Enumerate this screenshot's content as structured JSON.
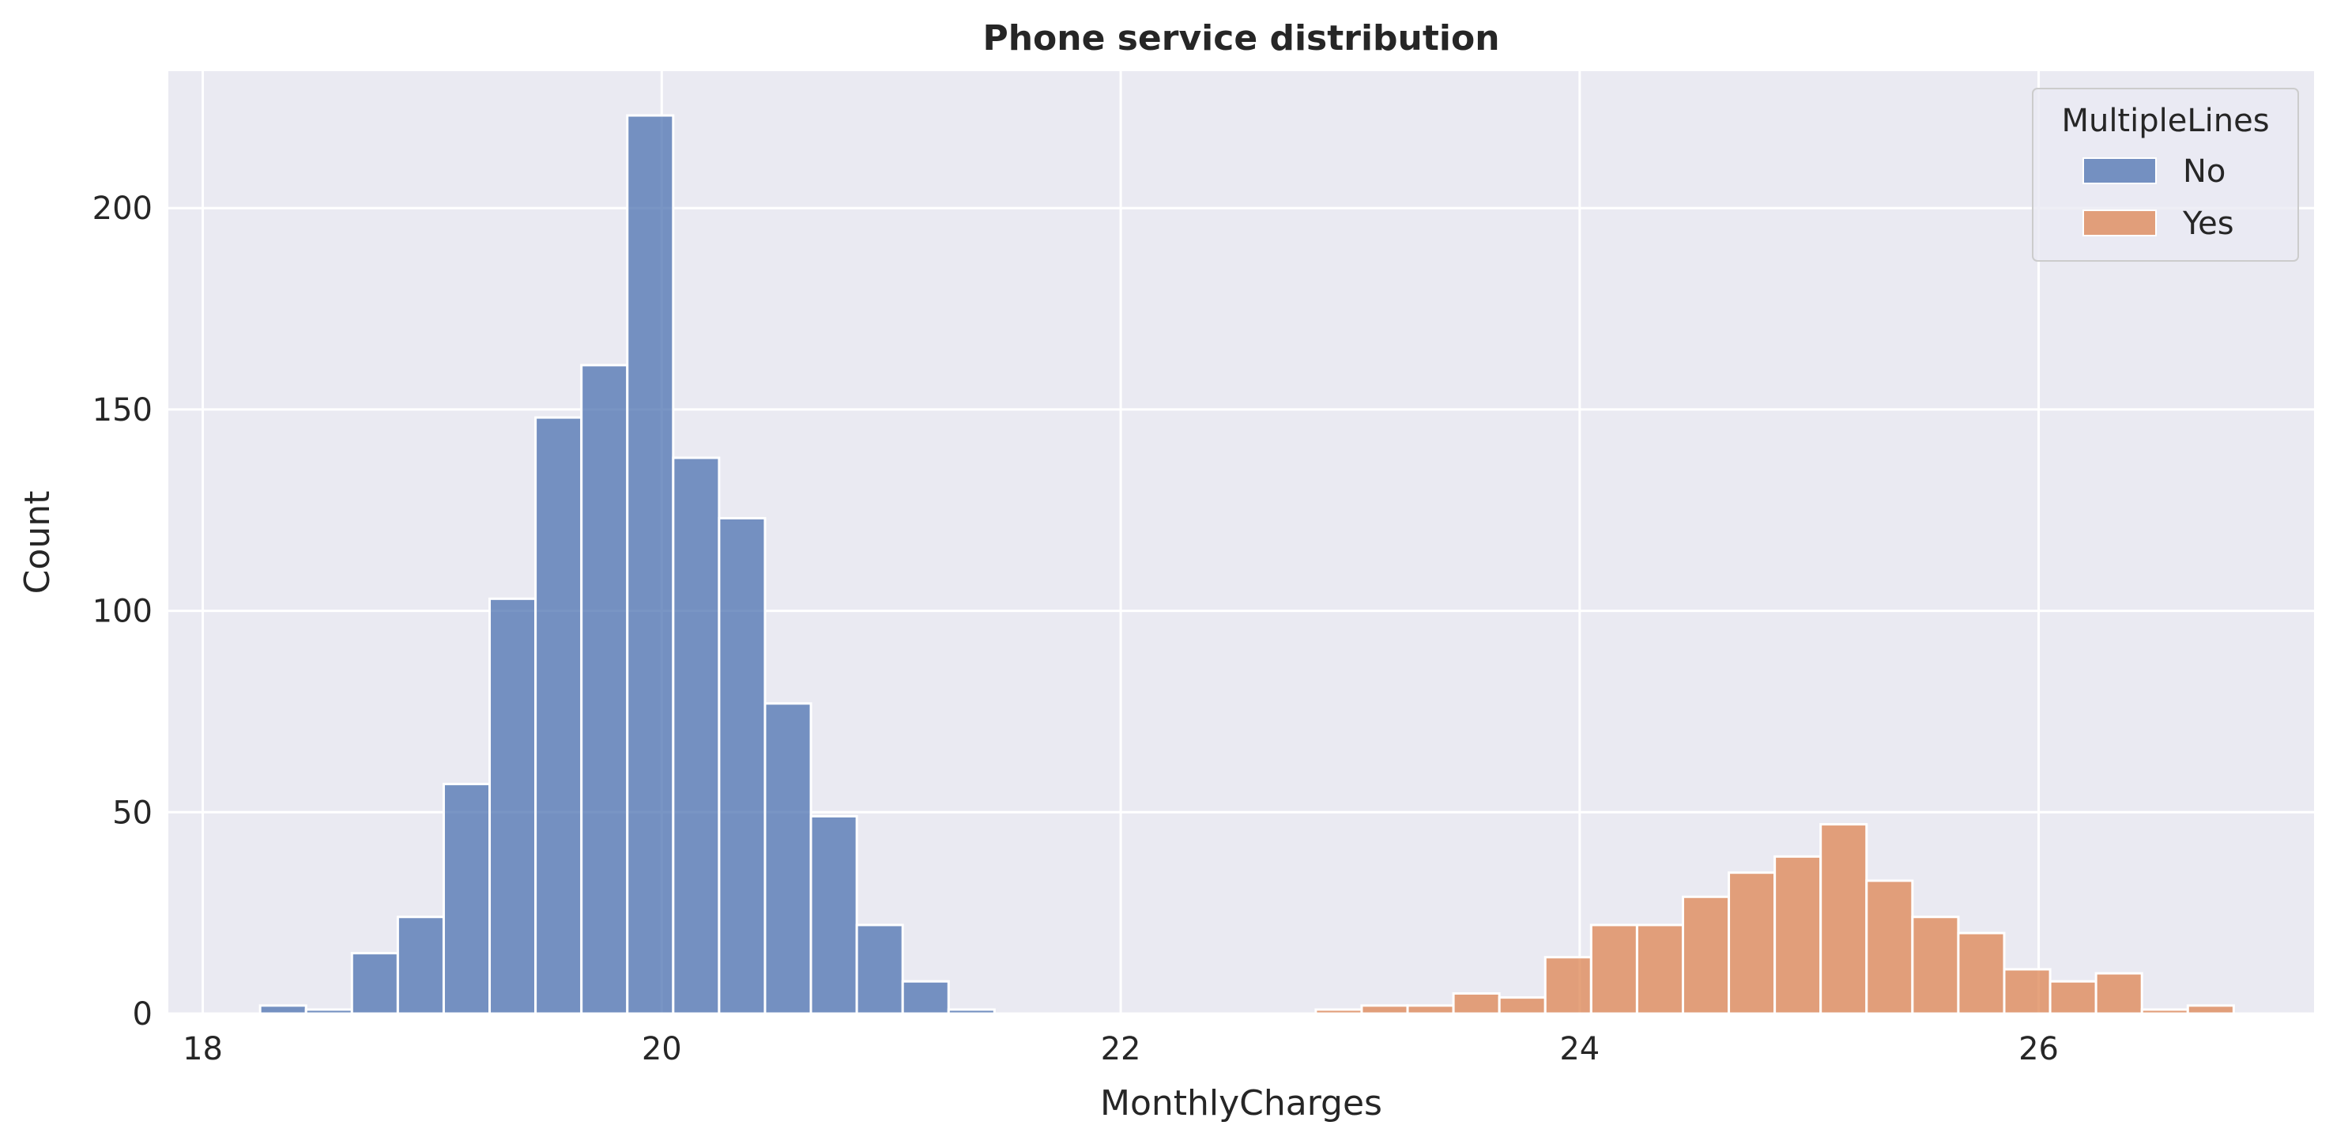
{
  "chart_data": {
    "type": "bar",
    "subtype": "histogram",
    "title": "Phone service distribution",
    "xlabel": "MonthlyCharges",
    "ylabel": "Count",
    "xlim": [
      17.85,
      27.2
    ],
    "ylim": [
      0,
      234
    ],
    "xticks": [
      18,
      20,
      22,
      24,
      26
    ],
    "yticks": [
      0,
      50,
      100,
      150,
      200
    ],
    "grid": true,
    "bin_width": 0.2,
    "legend": {
      "title": "MultipleLines",
      "placement": "top-right",
      "entries": [
        {
          "label": "No",
          "color": "#4C72B0"
        },
        {
          "label": "Yes",
          "color": "#DD8452"
        }
      ]
    },
    "background_color": "#EAEAF2",
    "series": [
      {
        "name": "No",
        "color": "#4C72B0",
        "bins": [
          {
            "x0": 18.25,
            "x1": 18.45,
            "count": 2
          },
          {
            "x0": 18.45,
            "x1": 18.65,
            "count": 1
          },
          {
            "x0": 18.65,
            "x1": 18.85,
            "count": 15
          },
          {
            "x0": 18.85,
            "x1": 19.05,
            "count": 24
          },
          {
            "x0": 19.05,
            "x1": 19.25,
            "count": 57
          },
          {
            "x0": 19.25,
            "x1": 19.45,
            "count": 103
          },
          {
            "x0": 19.45,
            "x1": 19.65,
            "count": 148
          },
          {
            "x0": 19.65,
            "x1": 19.85,
            "count": 161
          },
          {
            "x0": 19.85,
            "x1": 20.05,
            "count": 223
          },
          {
            "x0": 20.05,
            "x1": 20.25,
            "count": 138
          },
          {
            "x0": 20.25,
            "x1": 20.45,
            "count": 123
          },
          {
            "x0": 20.45,
            "x1": 20.65,
            "count": 77
          },
          {
            "x0": 20.65,
            "x1": 20.85,
            "count": 49
          },
          {
            "x0": 20.85,
            "x1": 21.05,
            "count": 22
          },
          {
            "x0": 21.05,
            "x1": 21.25,
            "count": 8
          },
          {
            "x0": 21.25,
            "x1": 21.45,
            "count": 1
          }
        ]
      },
      {
        "name": "Yes",
        "color": "#DD8452",
        "bins": [
          {
            "x0": 22.85,
            "x1": 23.05,
            "count": 1
          },
          {
            "x0": 23.05,
            "x1": 23.25,
            "count": 2
          },
          {
            "x0": 23.25,
            "x1": 23.45,
            "count": 2
          },
          {
            "x0": 23.45,
            "x1": 23.65,
            "count": 5
          },
          {
            "x0": 23.65,
            "x1": 23.85,
            "count": 4
          },
          {
            "x0": 23.85,
            "x1": 24.05,
            "count": 14
          },
          {
            "x0": 24.05,
            "x1": 24.25,
            "count": 22
          },
          {
            "x0": 24.25,
            "x1": 24.45,
            "count": 22
          },
          {
            "x0": 24.45,
            "x1": 24.65,
            "count": 29
          },
          {
            "x0": 24.65,
            "x1": 24.85,
            "count": 35
          },
          {
            "x0": 24.85,
            "x1": 25.05,
            "count": 39
          },
          {
            "x0": 25.05,
            "x1": 25.25,
            "count": 47
          },
          {
            "x0": 25.25,
            "x1": 25.45,
            "count": 33
          },
          {
            "x0": 25.45,
            "x1": 25.65,
            "count": 24
          },
          {
            "x0": 25.65,
            "x1": 25.85,
            "count": 20
          },
          {
            "x0": 25.85,
            "x1": 26.05,
            "count": 11
          },
          {
            "x0": 26.05,
            "x1": 26.25,
            "count": 8
          },
          {
            "x0": 26.25,
            "x1": 26.45,
            "count": 10
          },
          {
            "x0": 26.45,
            "x1": 26.65,
            "count": 1
          },
          {
            "x0": 26.65,
            "x1": 26.85,
            "count": 2
          }
        ]
      }
    ]
  }
}
